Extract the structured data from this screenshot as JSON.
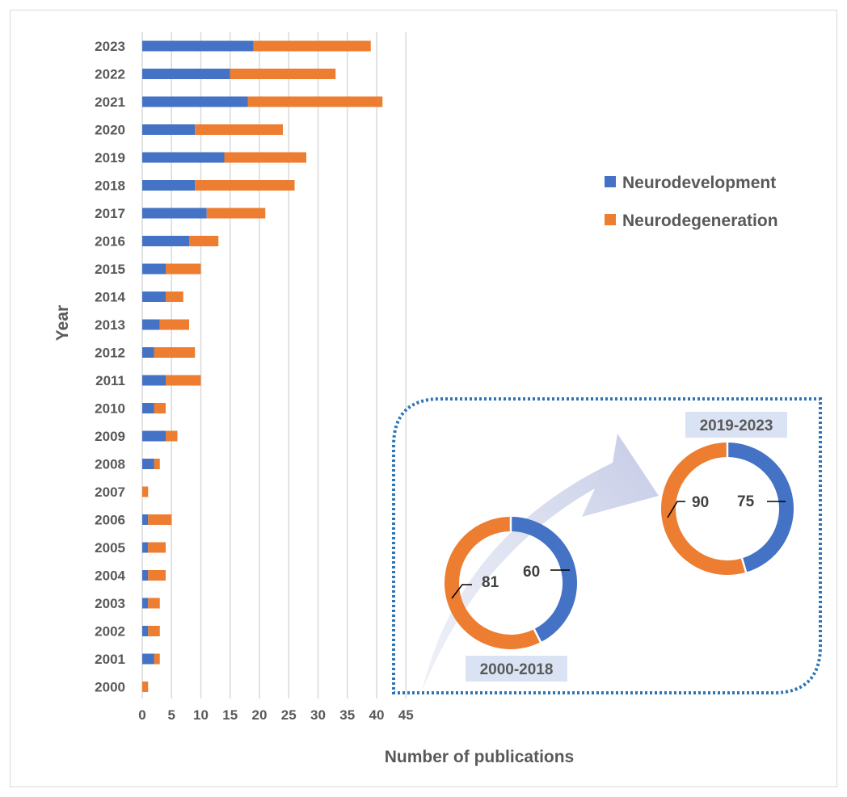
{
  "chart_data": {
    "type": "bar",
    "orientation": "horizontal",
    "stacked": true,
    "categories": [
      "2023",
      "2022",
      "2021",
      "2020",
      "2019",
      "2018",
      "2017",
      "2016",
      "2015",
      "2014",
      "2013",
      "2012",
      "2011",
      "2010",
      "2009",
      "2008",
      "2007",
      "2006",
      "2005",
      "2004",
      "2003",
      "2002",
      "2001",
      "2000"
    ],
    "series": [
      {
        "name": "Neurodevelopment",
        "color": "#4472C4",
        "values": [
          19,
          15,
          18,
          9,
          14,
          9,
          11,
          8,
          4,
          4,
          3,
          2,
          4,
          2,
          4,
          2,
          0,
          1,
          1,
          1,
          1,
          1,
          2,
          0
        ]
      },
      {
        "name": "Neurodegeneration",
        "color": "#ED7D31",
        "values": [
          20,
          18,
          23,
          15,
          14,
          17,
          10,
          5,
          6,
          3,
          5,
          7,
          6,
          2,
          2,
          1,
          1,
          4,
          3,
          3,
          2,
          2,
          1,
          1
        ]
      }
    ],
    "xlabel": "Number of publications",
    "ylabel": "Year",
    "xlim": [
      0,
      45
    ],
    "xticks": [
      0,
      5,
      10,
      15,
      20,
      25,
      30,
      35,
      40,
      45
    ],
    "grid": true,
    "legend_position": "right",
    "inset": {
      "type": "pie",
      "donuts": [
        {
          "label": "2000-2018",
          "neurodevelopment": 60,
          "neurodegeneration": 81
        },
        {
          "label": "2019-2023",
          "neurodevelopment": 75,
          "neurodegeneration": 90
        }
      ]
    }
  }
}
